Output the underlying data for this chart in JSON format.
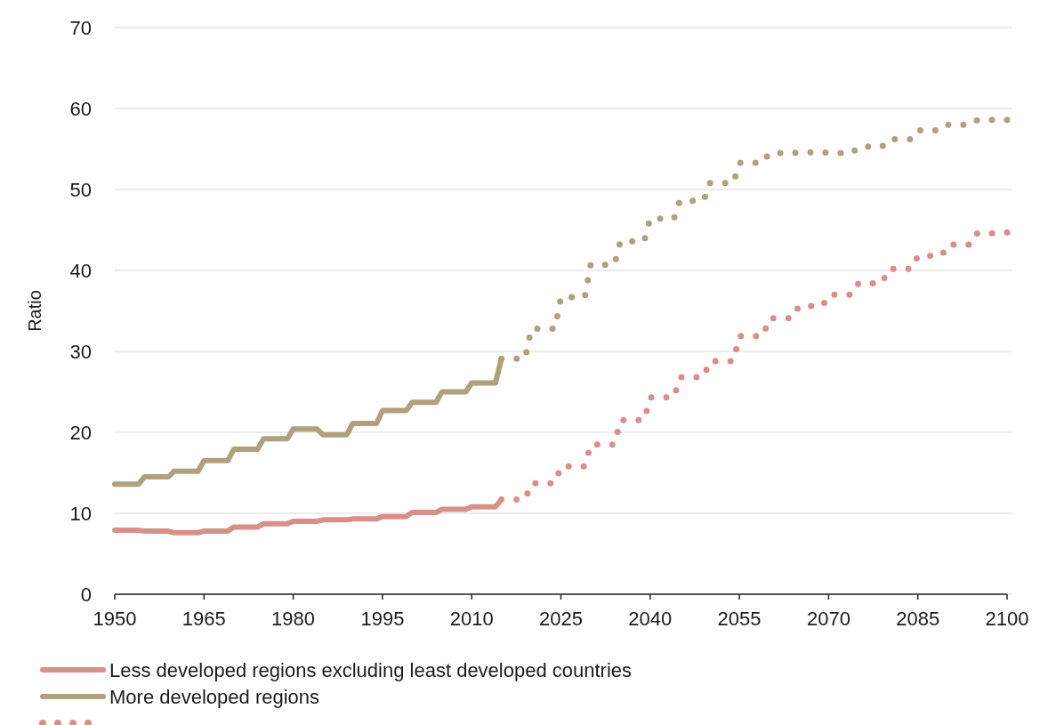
{
  "chart_data": {
    "type": "line",
    "ylabel": "Ratio",
    "xlim": [
      1950,
      2100
    ],
    "xticks": [
      1950,
      1965,
      1980,
      1995,
      2010,
      2025,
      2040,
      2055,
      2070,
      2085,
      2100
    ],
    "ylim": [
      0,
      70
    ],
    "yticks": [
      0,
      10,
      20,
      30,
      40,
      50,
      60,
      70
    ],
    "grid": "y",
    "legend": "bottom",
    "series": [
      {
        "name": "Less developed regions excluding least developed countries",
        "color": "#d98f89",
        "line_style": "solid",
        "x": [
          1950,
          1954,
          1955,
          1959,
          1960,
          1964,
          1965,
          1969,
          1970,
          1974,
          1975,
          1979,
          1980,
          1984,
          1985,
          1989,
          1990,
          1994,
          1995,
          1999,
          2000,
          2004,
          2005,
          2009,
          2010,
          2014,
          2015
        ],
        "values": [
          7.9,
          7.9,
          7.8,
          7.8,
          7.6,
          7.6,
          7.8,
          7.8,
          8.3,
          8.3,
          8.7,
          8.7,
          9.0,
          9.0,
          9.2,
          9.2,
          9.3,
          9.3,
          9.6,
          9.6,
          10.1,
          10.1,
          10.5,
          10.5,
          10.8,
          10.8,
          11.7
        ]
      },
      {
        "name": "More developed regions",
        "color": "#b0a07c",
        "line_style": "solid",
        "x": [
          1950,
          1954,
          1955,
          1959,
          1960,
          1964,
          1965,
          1969,
          1970,
          1974,
          1975,
          1979,
          1980,
          1984,
          1985,
          1989,
          1990,
          1994,
          1995,
          1999,
          2000,
          2004,
          2005,
          2009,
          2010,
          2014,
          2015
        ],
        "values": [
          13.6,
          13.6,
          14.5,
          14.5,
          15.2,
          15.2,
          16.5,
          16.5,
          17.9,
          17.9,
          19.2,
          19.2,
          20.4,
          20.4,
          19.7,
          19.7,
          21.1,
          21.1,
          22.7,
          22.7,
          23.7,
          23.7,
          25.0,
          25.0,
          26.1,
          26.1,
          29.1
        ]
      },
      {
        "color": "#d98f89",
        "line_style": "dotted",
        "x": [
          2015,
          2019,
          2020,
          2024,
          2025,
          2029,
          2030,
          2034,
          2035,
          2039,
          2040,
          2044,
          2045,
          2049,
          2050,
          2054,
          2055,
          2059,
          2060,
          2064,
          2065,
          2069,
          2070,
          2074,
          2075,
          2079,
          2080,
          2084,
          2085,
          2089,
          2090,
          2094,
          2095,
          2099,
          2100
        ],
        "values": [
          11.7,
          11.7,
          13.7,
          13.7,
          15.8,
          15.8,
          18.5,
          18.5,
          21.5,
          21.5,
          24.3,
          24.3,
          26.8,
          26.8,
          28.8,
          28.8,
          31.9,
          31.9,
          34.1,
          34.1,
          35.6,
          35.6,
          37.0,
          37.0,
          38.4,
          38.4,
          40.2,
          40.2,
          41.8,
          41.8,
          43.2,
          43.2,
          44.6,
          44.6,
          44.7
        ]
      },
      {
        "color": "#b0a07c",
        "line_style": "dotted",
        "x": [
          2015,
          2019,
          2020,
          2024,
          2025,
          2029,
          2030,
          2034,
          2035,
          2039,
          2040,
          2044,
          2045,
          2049,
          2050,
          2054,
          2055,
          2059,
          2060,
          2064,
          2065,
          2069,
          2070,
          2074,
          2075,
          2079,
          2080,
          2084,
          2085,
          2089,
          2090,
          2094,
          2095,
          2099,
          2100
        ],
        "values": [
          29.1,
          29.1,
          32.8,
          32.8,
          36.7,
          36.7,
          40.7,
          40.7,
          43.6,
          43.6,
          46.4,
          46.4,
          48.6,
          48.6,
          50.8,
          50.8,
          53.3,
          53.3,
          54.5,
          54.5,
          54.6,
          54.6,
          54.5,
          54.5,
          55.3,
          55.3,
          56.2,
          56.2,
          57.3,
          57.3,
          58.0,
          58.0,
          58.6,
          58.6,
          58.6
        ]
      }
    ]
  }
}
